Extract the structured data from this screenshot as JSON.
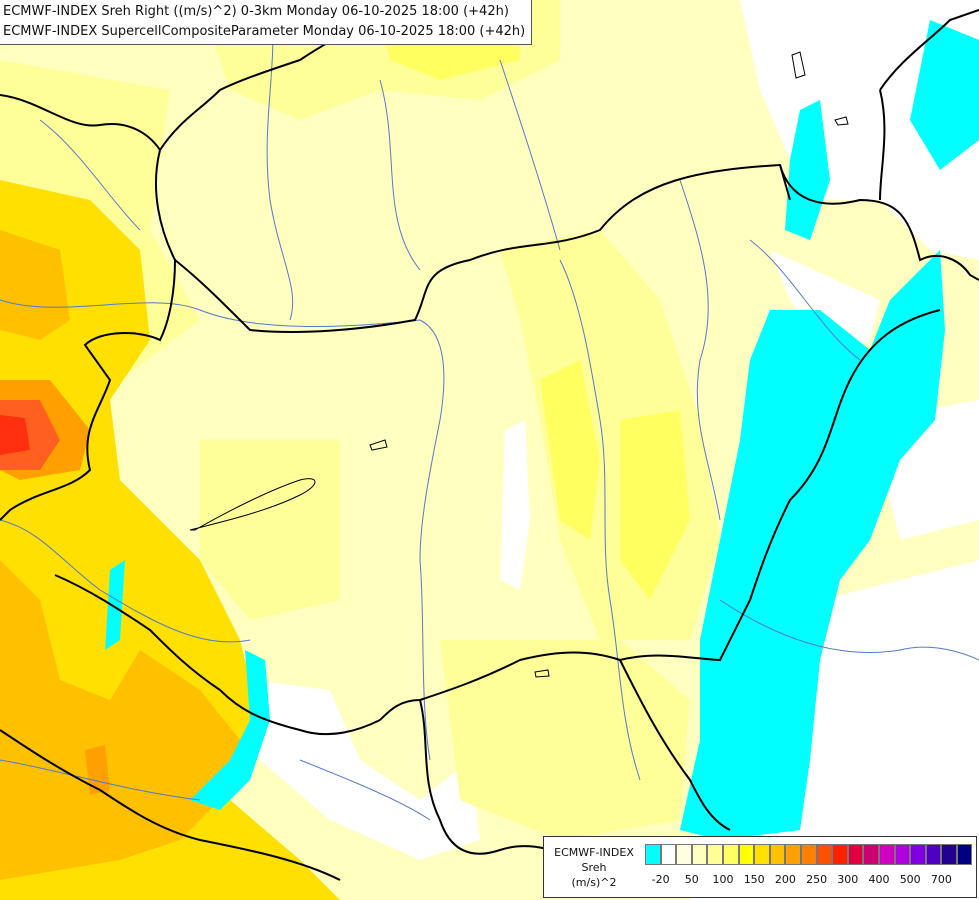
{
  "header": {
    "line1": "ECMWF-INDEX Sreh Right ((m/s)^2) 0-3km Monday 06-10-2025 18:00 (+42h)",
    "line2": "ECMWF-INDEX SupercellCompositeParameter Monday 06-10-2025 18:00 (+42h)"
  },
  "legend": {
    "title1": "ECMWF-INDEX",
    "title2": "Sreh",
    "title3": "(m/s)^2",
    "swatch_colors": [
      "#00ffff",
      "#ffffff",
      "#ffffe0",
      "#ffffc0",
      "#ffff99",
      "#ffff60",
      "#ffff00",
      "#ffe000",
      "#ffc000",
      "#ffa000",
      "#ff8000",
      "#ff5000",
      "#ff2000",
      "#e00040",
      "#cc0070",
      "#d000c0",
      "#b000e0",
      "#8000e0",
      "#5000c0",
      "#200090",
      "#000080"
    ],
    "tick_labels": [
      "-20",
      "50",
      "100",
      "150",
      "200",
      "250",
      "300",
      "400",
      "500",
      "700"
    ]
  },
  "colors": {
    "cyan": "#00ffff",
    "pale_yellow": "#ffffc0",
    "light_yellow": "#ffff99",
    "yellow": "#ffff60",
    "gold": "#ffe000",
    "orange": "#ffc000",
    "dark_orange": "#ffa000",
    "red_orange": "#ff6020",
    "red": "#ff2000",
    "border": "#000000",
    "river": "#5577cc"
  }
}
